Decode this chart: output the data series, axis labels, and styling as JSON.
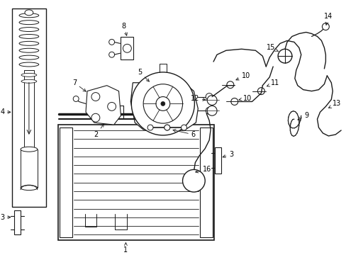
{
  "bg_color": "#ffffff",
  "lc": "#1a1a1a",
  "figsize": [
    4.89,
    3.6
  ],
  "dpi": 100,
  "fs": 7.0
}
